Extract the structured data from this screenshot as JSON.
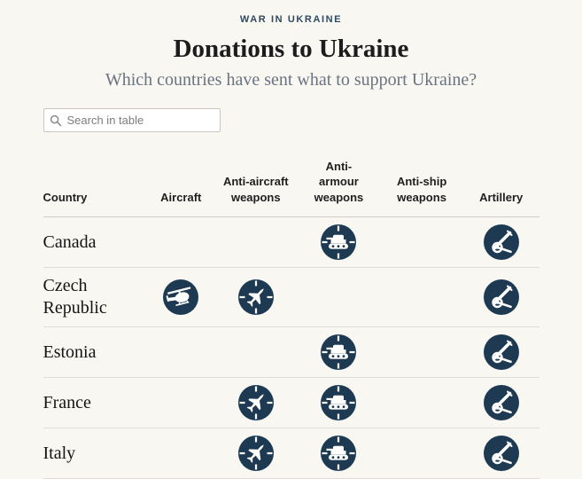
{
  "chart_data": {
    "type": "table",
    "kicker": "WAR IN UKRAINE",
    "title": "Donations to Ukraine",
    "subtitle": "Which countries have sent what to support Ukraine?",
    "columns": [
      {
        "key": "country",
        "label": "Country"
      },
      {
        "key": "aircraft",
        "label": "Aircraft"
      },
      {
        "key": "anti_aircraft",
        "label": "Anti-aircraft weapons"
      },
      {
        "key": "anti_armour",
        "label": "Anti-armour weapons"
      },
      {
        "key": "anti_ship",
        "label": "Anti-ship weapons"
      },
      {
        "key": "artillery",
        "label": "Artillery"
      }
    ],
    "rows": [
      {
        "country": "Canada",
        "aircraft": false,
        "anti_aircraft": false,
        "anti_armour": true,
        "anti_ship": false,
        "artillery": true
      },
      {
        "country": "Czech Republic",
        "aircraft": true,
        "anti_aircraft": true,
        "anti_armour": false,
        "anti_ship": false,
        "artillery": true
      },
      {
        "country": "Estonia",
        "aircraft": false,
        "anti_aircraft": false,
        "anti_armour": true,
        "anti_ship": false,
        "artillery": true
      },
      {
        "country": "France",
        "aircraft": false,
        "anti_aircraft": true,
        "anti_armour": true,
        "anti_ship": false,
        "artillery": true
      },
      {
        "country": "Italy",
        "aircraft": false,
        "anti_aircraft": true,
        "anti_armour": true,
        "anti_ship": false,
        "artillery": true
      }
    ],
    "cell_encoding": "icon present = country has donated that weapon category"
  },
  "search": {
    "placeholder": "Search in table"
  },
  "icons": {
    "search": "search-icon",
    "aircraft": "helicopter-icon",
    "anti_aircraft": "fighter-jet-crosshair-icon",
    "anti_armour": "tank-crosshair-icon",
    "anti_ship": "ship-crosshair-icon",
    "artillery": "howitzer-icon"
  },
  "colors": {
    "background": "#f8f7f2",
    "icon_navy": "#1d3a52",
    "kicker_navy": "#2e4960",
    "title_text": "#1c1c1c",
    "subtitle_gray": "#6a7380",
    "row_border": "#e0ddd6"
  }
}
